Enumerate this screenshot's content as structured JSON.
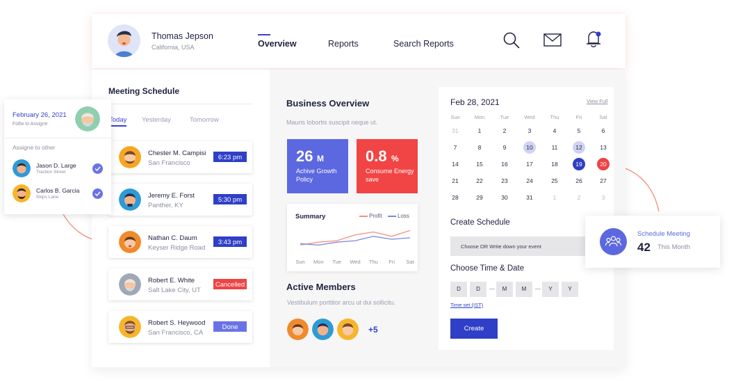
{
  "profile": {
    "name": "Thomas Jepson",
    "location": "California, USA"
  },
  "nav": {
    "tabs": [
      "Overview",
      "Reports",
      "Search Reports"
    ],
    "active": "Overview"
  },
  "header_icons": [
    "search-icon",
    "mail-icon",
    "bell-icon"
  ],
  "meeting": {
    "title": "Meeting Schedule",
    "tabs": [
      "Today",
      "Yesterday",
      "Tomorrow"
    ],
    "items": [
      {
        "name": "Chester M. Campisi",
        "place": "San Francisco",
        "status": "6:23 pm",
        "color": "#2f3fc7"
      },
      {
        "name": "Jeremy E. Forst",
        "place": "Panther, KY",
        "status": "5:30 pm",
        "color": "#2f3fc7"
      },
      {
        "name": "Nathan C. Daum",
        "place": "Keyser Ridge Road",
        "status": "3:43 pm",
        "color": "#2f3fc7"
      },
      {
        "name": "Robert E. White",
        "place": "Salt Lake City, UT",
        "status": "Cancelled",
        "color": "#f04343"
      },
      {
        "name": "Robert S. Heywood",
        "place": "San Francisco, CA",
        "status": "Done",
        "color": "#6a73e6"
      }
    ]
  },
  "business": {
    "title": "Business Overview",
    "subtitle": "Mauris lobortis suscipit neque ut.",
    "growth": {
      "value": "26",
      "unit": "M",
      "label": "Achive Growth Policy",
      "color": "#5c68e0"
    },
    "energy": {
      "value": "0.8",
      "unit": "%",
      "label": "Consume Energy save",
      "color": "#f14444"
    }
  },
  "chart_data": {
    "type": "line",
    "title": "Summary",
    "categories": [
      "Sun",
      "Mon",
      "Tue",
      "Wed",
      "Thu",
      "Fri",
      "Sat"
    ],
    "series": [
      {
        "name": "Profit",
        "color": "#f3907a",
        "values": [
          3,
          4,
          4.5,
          6.5,
          7.5,
          6,
          8
        ]
      },
      {
        "name": "Loss",
        "color": "#7b86e3",
        "values": [
          3.5,
          3,
          4,
          4.5,
          6,
          5,
          5.5
        ]
      }
    ],
    "ylim": [
      0,
      10
    ],
    "grid": false,
    "legend": "top-right"
  },
  "members": {
    "title": "Active Members",
    "subtitle": "Vestibulum porttitor arcu ut dui sollicitu.",
    "more": "+5"
  },
  "calendar": {
    "date": "Feb 28, 2021",
    "view_full": "View Full",
    "weekdays": [
      "Sun",
      "Mon",
      "Tue",
      "Wed",
      "Thu",
      "Fri",
      "Sat"
    ],
    "weeks": [
      [
        "31",
        "1",
        "2",
        "3",
        "4",
        "5",
        "6"
      ],
      [
        "7",
        "8",
        "9",
        "10",
        "11",
        "12",
        "13"
      ],
      [
        "14",
        "15",
        "16",
        "17",
        "18",
        "19",
        "20"
      ],
      [
        "21",
        "22",
        "23",
        "24",
        "25",
        "26",
        "27"
      ],
      [
        "28",
        "29",
        "30",
        "31",
        "1",
        "2",
        "3"
      ]
    ],
    "create_title": "Create Schedule",
    "event_placeholder": "Choose OR Write down your event",
    "time_title": "Choose Time & Date",
    "date_fields": [
      "D",
      "D",
      "M",
      "M",
      "Y",
      "Y"
    ],
    "time_set": "Time set (IST)",
    "create_button": "Create"
  },
  "assign": {
    "date": "February 26, 2021",
    "sub": "Follw to Assigne",
    "title": "Assigne to other",
    "people": [
      {
        "name": "Jason D. Large",
        "place": "Traction Street"
      },
      {
        "name": "Carlos B. Garcia",
        "place": "Skips Lane"
      }
    ]
  },
  "schedule_meeting": {
    "label": "Schedule Meeting",
    "count": "42",
    "period": "This Month"
  }
}
